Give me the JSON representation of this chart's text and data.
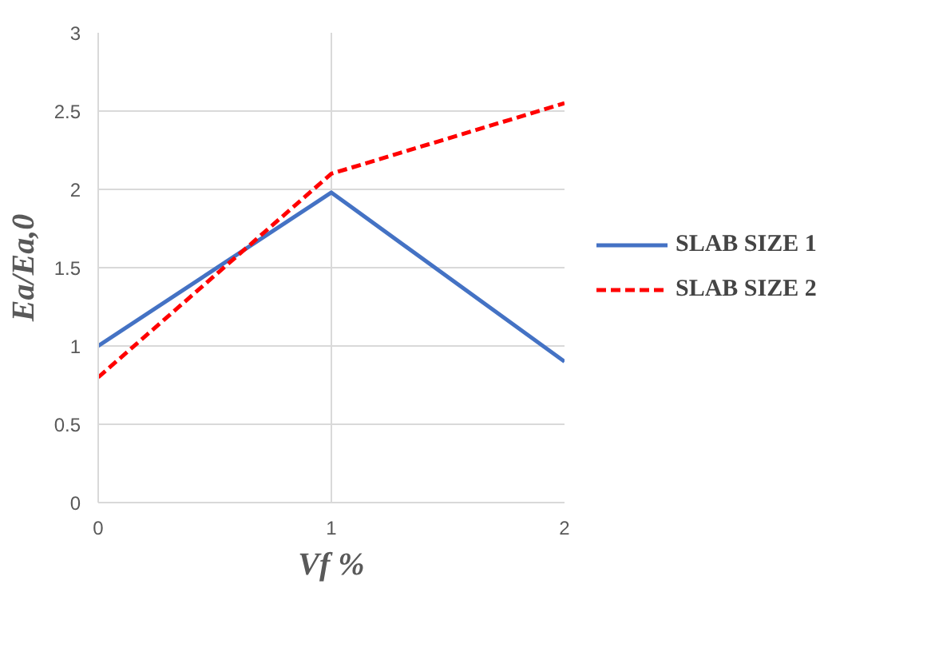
{
  "chart_data": {
    "type": "line",
    "xlabel": "Vf %",
    "ylabel": "Ea/Ea,0",
    "x": [
      0,
      1,
      2
    ],
    "series": [
      {
        "name": "SLAB SIZE 1",
        "color": "#4472c4",
        "values": [
          1,
          1.98,
          0.9
        ],
        "line_style": "solid"
      },
      {
        "name": "SLAB SIZE 2",
        "color": "#ff0000",
        "values": [
          0.8,
          2.1,
          2.55
        ],
        "line_style": "dashed"
      }
    ],
    "xlim": [
      0,
      2
    ],
    "xticks": [
      0,
      1,
      2
    ],
    "ylim": [
      0,
      3
    ],
    "yticks": [
      0,
      0.5,
      1,
      1.5,
      2,
      2.5,
      3
    ],
    "grid": true,
    "legend": "right",
    "marker": "none"
  }
}
